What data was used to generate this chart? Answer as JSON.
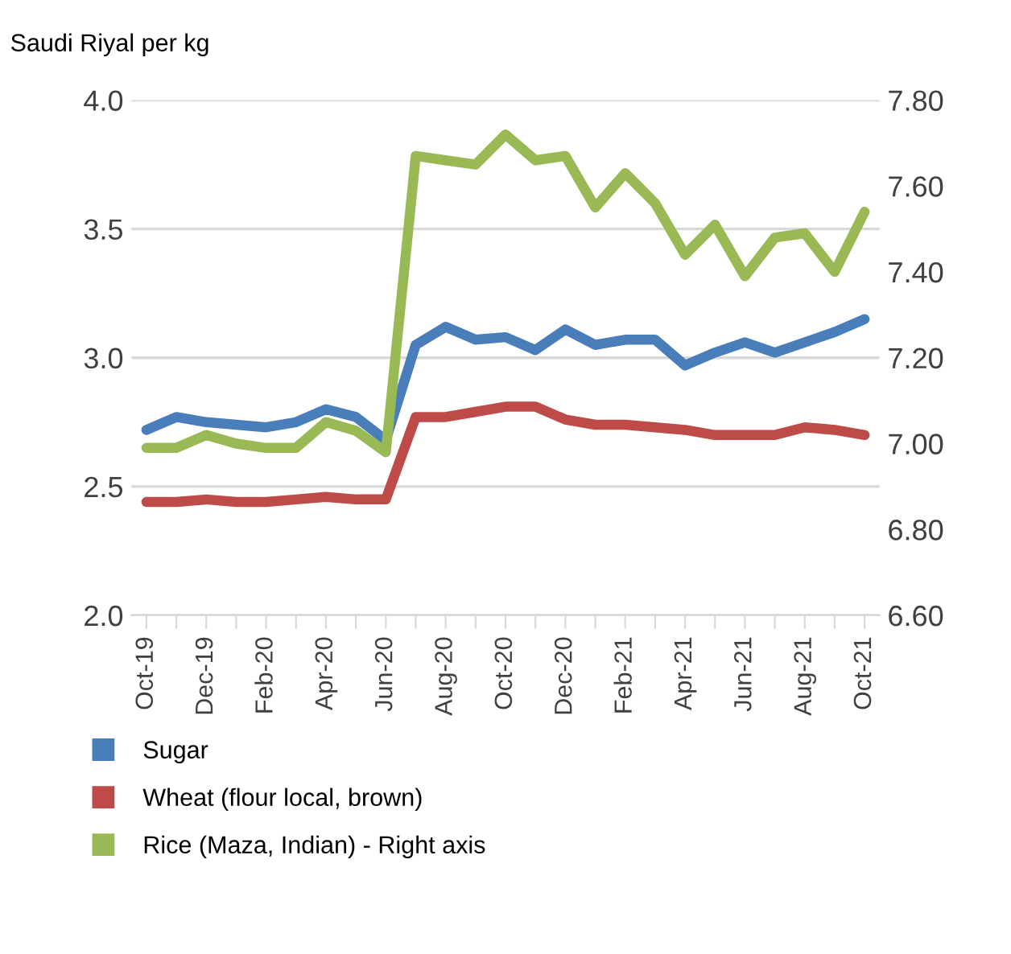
{
  "chart_data": {
    "type": "line",
    "ylabel": "Saudi Riyal per kg",
    "categories": [
      "Oct-19",
      null,
      "Dec-19",
      null,
      "Feb-20",
      null,
      "Apr-20",
      null,
      "Jun-20",
      null,
      "Aug-20",
      null,
      "Oct-20",
      null,
      "Dec-20",
      null,
      "Feb-21",
      null,
      "Apr-21",
      null,
      "Jun-21",
      null,
      "Aug-21",
      null,
      "Oct-21"
    ],
    "series": [
      {
        "name": "Sugar",
        "color": "#4a7ebb",
        "values": [
          2.72,
          2.77,
          2.75,
          2.74,
          2.73,
          2.75,
          2.8,
          2.77,
          2.68,
          3.05,
          3.12,
          3.07,
          3.08,
          3.03,
          3.11,
          3.05,
          3.07,
          3.07,
          2.97,
          3.02,
          3.06,
          3.02,
          3.06,
          3.1,
          3.15
        ]
      },
      {
        "name": "Wheat (flour local, brown)",
        "color": "#be4b48",
        "values": [
          2.44,
          2.44,
          2.45,
          2.44,
          2.44,
          2.45,
          2.46,
          2.45,
          2.45,
          2.77,
          2.77,
          2.79,
          2.81,
          2.81,
          2.76,
          2.74,
          2.74,
          2.73,
          2.72,
          2.7,
          2.7,
          2.7,
          2.73,
          2.72,
          2.7
        ]
      },
      {
        "name": "Rice (Maza, Indian) - Right axis",
        "color": "#98b954",
        "axis": "y2",
        "values": [
          6.99,
          6.99,
          7.02,
          7.0,
          6.99,
          6.99,
          7.05,
          7.03,
          6.98,
          7.67,
          7.66,
          7.65,
          7.72,
          7.66,
          7.67,
          7.55,
          7.63,
          7.56,
          7.44,
          7.51,
          7.39,
          7.48,
          7.49,
          7.4,
          7.54
        ]
      }
    ],
    "ylim": [
      2.0,
      4.0
    ],
    "yticks": [
      {
        "value": 2.0,
        "label": "2.0"
      },
      {
        "value": 2.5,
        "label": "2.5"
      },
      {
        "value": 3.0,
        "label": "3.0"
      },
      {
        "value": 3.5,
        "label": "3.5"
      },
      {
        "value": 4.0,
        "label": "4.0"
      }
    ],
    "y2lim": [
      6.6,
      7.8
    ],
    "y2ticks": [
      {
        "value": 6.6,
        "label": "6.60"
      },
      {
        "value": 6.8,
        "label": "6.80"
      },
      {
        "value": 7.0,
        "label": "7.00"
      },
      {
        "value": 7.2,
        "label": "7.20"
      },
      {
        "value": 7.4,
        "label": "7.40"
      },
      {
        "value": 7.6,
        "label": "7.60"
      },
      {
        "value": 7.8,
        "label": "7.80"
      }
    ],
    "grid": "y",
    "legend": "bottom",
    "line_style": "solid",
    "marker": "none"
  }
}
